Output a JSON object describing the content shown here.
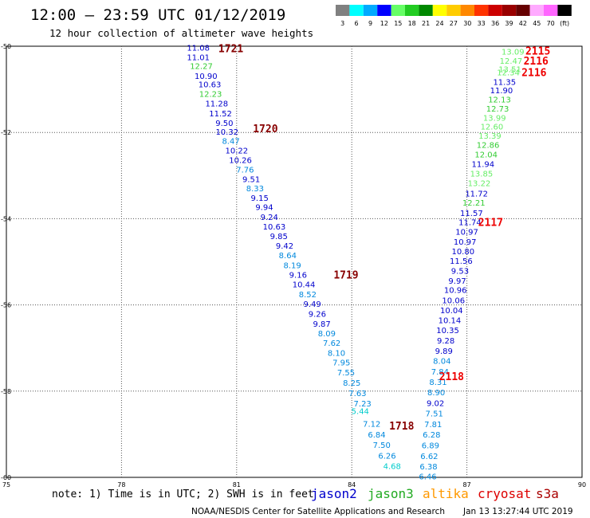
{
  "header": {
    "title": "12:00 – 23:59 UTC 01/12/2019",
    "subtitle": "12 hour collection of altimeter wave heights"
  },
  "scale": {
    "labels": [
      "3",
      "6",
      "9",
      "12",
      "15",
      "18",
      "21",
      "24",
      "27",
      "30",
      "33",
      "36",
      "39",
      "42",
      "45",
      "70",
      "(ft)"
    ],
    "colors": [
      "#808080",
      "#00ffff",
      "#00aaff",
      "#0000ff",
      "#66ff66",
      "#22cc22",
      "#008800",
      "#ffff00",
      "#ffcc00",
      "#ff8800",
      "#ff3300",
      "#cc0000",
      "#990000",
      "#660000",
      "#ffaaff",
      "#ff66ff",
      "#000000"
    ]
  },
  "map": {
    "lon_range": [
      75,
      90
    ],
    "lat_range": [
      -60,
      -50
    ],
    "lon_ticks": [
      "75",
      "78",
      "81",
      "84",
      "87",
      "90"
    ],
    "lat_ticks": [
      "-50",
      "-52",
      "-54",
      "-56",
      "-58",
      "-60"
    ],
    "lon_tick_values": [
      75,
      78,
      81,
      84,
      87,
      90
    ],
    "lat_tick_values": [
      -50,
      -52,
      -54,
      -56,
      -58,
      -60
    ]
  },
  "series_colors": {
    "jason2": "#0000cc",
    "jason3": "#22aa22",
    "altika": "#ff8800",
    "cryosat": "#dd0000",
    "s3a": "#aa0000"
  },
  "tracks": [
    {
      "value_colors": "mixed",
      "points": [
        {
          "lon": 80.0,
          "lat": -50.03,
          "v": "11.08",
          "c": "#0000cc"
        },
        {
          "lon": 80.0,
          "lat": -50.25,
          "v": "11.01",
          "c": "#0000cc"
        },
        {
          "lon": 80.08,
          "lat": -50.45,
          "v": "12.27",
          "c": "#33cc33"
        },
        {
          "lon": 80.2,
          "lat": -50.68,
          "v": "10.90",
          "c": "#0000cc"
        },
        {
          "lon": 80.3,
          "lat": -50.88,
          "v": "10.63",
          "c": "#0000cc"
        },
        {
          "lon": 80.32,
          "lat": -51.1,
          "v": "12.23",
          "c": "#33cc33"
        },
        {
          "lon": 80.48,
          "lat": -51.32,
          "v": "11.28",
          "c": "#0000cc"
        },
        {
          "lon": 80.58,
          "lat": -51.55,
          "v": "11.52",
          "c": "#0000cc"
        },
        {
          "lon": 80.68,
          "lat": -51.77,
          "v": "9.50",
          "c": "#0000cc"
        },
        {
          "lon": 80.75,
          "lat": -51.98,
          "v": "10.32",
          "c": "#0000cc"
        },
        {
          "lon": 80.85,
          "lat": -52.19,
          "v": "8.47",
          "c": "#0088dd"
        },
        {
          "lon": 81.0,
          "lat": -52.41,
          "v": "10.22",
          "c": "#0000cc"
        },
        {
          "lon": 81.1,
          "lat": -52.63,
          "v": "10.26",
          "c": "#0000cc"
        },
        {
          "lon": 81.22,
          "lat": -52.86,
          "v": "7.76",
          "c": "#0088dd"
        },
        {
          "lon": 81.38,
          "lat": -53.08,
          "v": "9.51",
          "c": "#0000cc"
        },
        {
          "lon": 81.48,
          "lat": -53.29,
          "v": "8.33",
          "c": "#0088dd"
        },
        {
          "lon": 81.6,
          "lat": -53.51,
          "v": "9.15",
          "c": "#0000cc"
        },
        {
          "lon": 81.72,
          "lat": -53.72,
          "v": "9.94",
          "c": "#0000cc"
        },
        {
          "lon": 81.85,
          "lat": -53.96,
          "v": "9.24",
          "c": "#0000cc"
        },
        {
          "lon": 81.98,
          "lat": -54.18,
          "v": "10.63",
          "c": "#0000cc"
        },
        {
          "lon": 82.1,
          "lat": -54.4,
          "v": "9.85",
          "c": "#0000cc"
        },
        {
          "lon": 82.25,
          "lat": -54.62,
          "v": "9.42",
          "c": "#0000cc"
        },
        {
          "lon": 82.33,
          "lat": -54.84,
          "v": "8.64",
          "c": "#0088dd"
        },
        {
          "lon": 82.45,
          "lat": -55.07,
          "v": "8.19",
          "c": "#0088dd"
        },
        {
          "lon": 82.6,
          "lat": -55.3,
          "v": "9.16",
          "c": "#0000cc"
        },
        {
          "lon": 82.75,
          "lat": -55.52,
          "v": "10.44",
          "c": "#0000cc"
        },
        {
          "lon": 82.85,
          "lat": -55.75,
          "v": "8.52",
          "c": "#0088dd"
        },
        {
          "lon": 82.97,
          "lat": -55.97,
          "v": "9.49",
          "c": "#0000cc"
        },
        {
          "lon": 83.1,
          "lat": -56.2,
          "v": "9.26",
          "c": "#0000cc"
        },
        {
          "lon": 83.22,
          "lat": -56.43,
          "v": "9.87",
          "c": "#0000cc"
        },
        {
          "lon": 83.35,
          "lat": -56.65,
          "v": "8.09",
          "c": "#0088dd"
        },
        {
          "lon": 83.48,
          "lat": -56.88,
          "v": "7.62",
          "c": "#0088dd"
        },
        {
          "lon": 83.6,
          "lat": -57.11,
          "v": "8.10",
          "c": "#0088dd"
        },
        {
          "lon": 83.73,
          "lat": -57.33,
          "v": "7.95",
          "c": "#0088dd"
        },
        {
          "lon": 83.85,
          "lat": -57.56,
          "v": "7.55",
          "c": "#0088dd"
        },
        {
          "lon": 84.0,
          "lat": -57.8,
          "v": "8.25",
          "c": "#0088dd"
        },
        {
          "lon": 84.15,
          "lat": -58.04,
          "v": "7.63",
          "c": "#0088dd"
        },
        {
          "lon": 84.28,
          "lat": -58.28,
          "v": "7.23",
          "c": "#0088dd"
        },
        {
          "lon": 84.22,
          "lat": -58.46,
          "v": "5.44",
          "c": "#00cccc"
        },
        {
          "lon": 84.52,
          "lat": -58.75,
          "v": "7.12",
          "c": "#0088dd"
        },
        {
          "lon": 84.65,
          "lat": -59.0,
          "v": "6.84",
          "c": "#0088dd"
        },
        {
          "lon": 84.78,
          "lat": -59.24,
          "v": "7.50",
          "c": "#0088dd"
        },
        {
          "lon": 84.92,
          "lat": -59.49,
          "v": "6.26",
          "c": "#0088dd"
        },
        {
          "lon": 85.05,
          "lat": -59.73,
          "v": "4.68",
          "c": "#00cccc"
        }
      ]
    },
    {
      "value_colors": "mixed",
      "points": [
        {
          "lon": 88.2,
          "lat": -50.12,
          "v": "13.09",
          "c": "#66ee66"
        },
        {
          "lon": 88.15,
          "lat": -50.33,
          "v": "12.47",
          "c": "#66ee66"
        },
        {
          "lon": 88.12,
          "lat": -50.53,
          "v": "13.51",
          "c": "#66ee66"
        },
        {
          "lon": 88.08,
          "lat": -50.6,
          "v": "12.34",
          "c": "#66ee66"
        },
        {
          "lon": 87.98,
          "lat": -50.82,
          "v": "11.35",
          "c": "#0000cc"
        },
        {
          "lon": 87.9,
          "lat": -51.02,
          "v": "11.90",
          "c": "#0000cc"
        },
        {
          "lon": 87.85,
          "lat": -51.23,
          "v": "12.13",
          "c": "#33cc33"
        },
        {
          "lon": 87.8,
          "lat": -51.44,
          "v": "12.73",
          "c": "#33cc33"
        },
        {
          "lon": 87.72,
          "lat": -51.65,
          "v": "13.99",
          "c": "#66ee66"
        },
        {
          "lon": 87.65,
          "lat": -51.86,
          "v": "12.60",
          "c": "#66ee66"
        },
        {
          "lon": 87.6,
          "lat": -52.07,
          "v": "13.39",
          "c": "#66ee66"
        },
        {
          "lon": 87.55,
          "lat": -52.28,
          "v": "12.86",
          "c": "#33cc33"
        },
        {
          "lon": 87.5,
          "lat": -52.5,
          "v": "12.04",
          "c": "#33cc33"
        },
        {
          "lon": 87.42,
          "lat": -52.73,
          "v": "11.94",
          "c": "#0000cc"
        },
        {
          "lon": 87.38,
          "lat": -52.95,
          "v": "13.85",
          "c": "#66ee66"
        },
        {
          "lon": 87.32,
          "lat": -53.17,
          "v": "13.22",
          "c": "#66ee66"
        },
        {
          "lon": 87.25,
          "lat": -53.41,
          "v": "11.72",
          "c": "#0000cc"
        },
        {
          "lon": 87.18,
          "lat": -53.62,
          "v": "12.21",
          "c": "#33cc33"
        },
        {
          "lon": 87.12,
          "lat": -53.86,
          "v": "11.57",
          "c": "#0000cc"
        },
        {
          "lon": 87.08,
          "lat": -54.08,
          "v": "11.74",
          "c": "#0000cc"
        },
        {
          "lon": 87.0,
          "lat": -54.3,
          "v": "10.97",
          "c": "#0000cc"
        },
        {
          "lon": 86.95,
          "lat": -54.53,
          "v": "10.97",
          "c": "#0000cc"
        },
        {
          "lon": 86.9,
          "lat": -54.75,
          "v": "10.80",
          "c": "#0000cc"
        },
        {
          "lon": 86.85,
          "lat": -54.97,
          "v": "11.56",
          "c": "#0000cc"
        },
        {
          "lon": 86.82,
          "lat": -55.2,
          "v": "9.53",
          "c": "#0000cc"
        },
        {
          "lon": 86.75,
          "lat": -55.43,
          "v": "9.97",
          "c": "#0000cc"
        },
        {
          "lon": 86.7,
          "lat": -55.65,
          "v": "10.96",
          "c": "#0000cc"
        },
        {
          "lon": 86.65,
          "lat": -55.89,
          "v": "10.06",
          "c": "#0000cc"
        },
        {
          "lon": 86.6,
          "lat": -56.12,
          "v": "10.04",
          "c": "#0000cc"
        },
        {
          "lon": 86.55,
          "lat": -56.35,
          "v": "10.14",
          "c": "#0000cc"
        },
        {
          "lon": 86.5,
          "lat": -56.58,
          "v": "10.35",
          "c": "#0000cc"
        },
        {
          "lon": 86.45,
          "lat": -56.82,
          "v": "9.28",
          "c": "#0000cc"
        },
        {
          "lon": 86.4,
          "lat": -57.06,
          "v": "9.89",
          "c": "#0000cc"
        },
        {
          "lon": 86.35,
          "lat": -57.29,
          "v": "8.04",
          "c": "#0088dd"
        },
        {
          "lon": 86.3,
          "lat": -57.54,
          "v": "7.84",
          "c": "#0088dd"
        },
        {
          "lon": 86.25,
          "lat": -57.78,
          "v": "8.31",
          "c": "#0088dd"
        },
        {
          "lon": 86.2,
          "lat": -58.02,
          "v": "8.90",
          "c": "#0088dd"
        },
        {
          "lon": 86.18,
          "lat": -58.27,
          "v": "9.02",
          "c": "#0000cc"
        },
        {
          "lon": 86.15,
          "lat": -58.51,
          "v": "7.51",
          "c": "#0088dd"
        },
        {
          "lon": 86.12,
          "lat": -58.76,
          "v": "7.81",
          "c": "#0088dd"
        },
        {
          "lon": 86.08,
          "lat": -59.0,
          "v": "6.28",
          "c": "#0088dd"
        },
        {
          "lon": 86.05,
          "lat": -59.25,
          "v": "6.89",
          "c": "#0088dd"
        },
        {
          "lon": 86.02,
          "lat": -59.5,
          "v": "6.62",
          "c": "#0088dd"
        },
        {
          "lon": 86.0,
          "lat": -59.74,
          "v": "6.38",
          "c": "#0088dd"
        },
        {
          "lon": 85.98,
          "lat": -59.97,
          "v": "6.46",
          "c": "#0088dd"
        }
      ]
    }
  ],
  "time_labels": [
    {
      "lon": 80.85,
      "lat": -50.05,
      "t": "1721",
      "c": "#880000"
    },
    {
      "lon": 81.75,
      "lat": -51.9,
      "t": "1720",
      "c": "#880000"
    },
    {
      "lon": 83.85,
      "lat": -55.3,
      "t": "1719",
      "c": "#880000"
    },
    {
      "lon": 85.3,
      "lat": -58.8,
      "t": "1718",
      "c": "#880000"
    },
    {
      "lon": 88.85,
      "lat": -50.1,
      "t": "2115",
      "c": "#ee0000"
    },
    {
      "lon": 88.8,
      "lat": -50.33,
      "t": "2116",
      "c": "#ee0000"
    },
    {
      "lon": 88.75,
      "lat": -50.6,
      "t": "2116",
      "c": "#ee0000"
    },
    {
      "lon": 87.62,
      "lat": -54.08,
      "t": "2117",
      "c": "#ee0000"
    },
    {
      "lon": 86.6,
      "lat": -57.65,
      "t": "2118",
      "c": "#ee0000"
    }
  ],
  "footer": {
    "note": "note:  1) Time is in UTC; 2) SWH is in feet",
    "legend": [
      {
        "label": "jason2",
        "color": "#0000cc"
      },
      {
        "label": "jason3",
        "color": "#22aa22"
      },
      {
        "label": "altika",
        "color": "#ff9900"
      },
      {
        "label": "cryosat",
        "color": "#dd0000"
      },
      {
        "label": "s3a",
        "color": "#aa0000"
      }
    ],
    "credit": "NOAA/NESDIS Center for Satellite Applications and Research",
    "timestamp": "Jan 13 13:27:44 UTC 2019"
  }
}
